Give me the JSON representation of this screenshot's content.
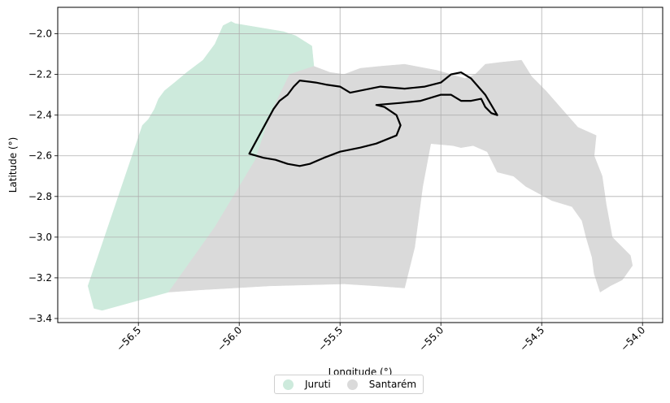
{
  "chart_data": {
    "type": "map",
    "title": "",
    "xlabel": "Longitude (°)",
    "ylabel": "Latitude (°)",
    "xlim": [
      -56.9,
      -53.9
    ],
    "ylim": [
      -3.42,
      -1.87
    ],
    "xticks": [
      -56.5,
      -56.0,
      -55.5,
      -55.0,
      -54.5,
      -54.0
    ],
    "xtick_labels": [
      "−56.5",
      "−56.0",
      "−55.5",
      "−55.0",
      "−54.5",
      "−54.0"
    ],
    "yticks": [
      -2.0,
      -2.2,
      -2.4,
      -2.6,
      -2.8,
      -3.0,
      -3.2,
      -3.4
    ],
    "ytick_labels": [
      "−2.0",
      "−2.2",
      "−2.4",
      "−2.6",
      "−2.8",
      "−3.0",
      "−3.2",
      "−3.4"
    ],
    "grid": true,
    "legend_position": "bottom-center",
    "legend": [
      {
        "name": "Juruti",
        "color": "#cdeadc"
      },
      {
        "name": "Santarém",
        "color": "#dadada"
      }
    ],
    "regions": [
      {
        "name": "Juruti",
        "color": "#cdeadc",
        "lonlat": [
          [
            -56.75,
            -3.24
          ],
          [
            -56.72,
            -3.35
          ],
          [
            -56.68,
            -3.36
          ],
          [
            -56.35,
            -3.27
          ],
          [
            -56.12,
            -2.95
          ],
          [
            -55.92,
            -2.62
          ],
          [
            -55.84,
            -2.38
          ],
          [
            -55.75,
            -2.2
          ],
          [
            -55.63,
            -2.16
          ],
          [
            -55.64,
            -2.06
          ],
          [
            -55.72,
            -2.01
          ],
          [
            -55.78,
            -1.99
          ],
          [
            -56.02,
            -1.95
          ],
          [
            -56.04,
            -1.94
          ],
          [
            -56.08,
            -1.96
          ],
          [
            -56.12,
            -2.05
          ],
          [
            -56.18,
            -2.13
          ],
          [
            -56.26,
            -2.19
          ],
          [
            -56.32,
            -2.24
          ],
          [
            -56.37,
            -2.28
          ],
          [
            -56.4,
            -2.32
          ],
          [
            -56.42,
            -2.37
          ],
          [
            -56.45,
            -2.42
          ],
          [
            -56.47,
            -2.44
          ],
          [
            -56.48,
            -2.45
          ]
        ]
      },
      {
        "name": "Santarém",
        "color": "#dadada",
        "lonlat": [
          [
            -56.35,
            -3.27
          ],
          [
            -56.12,
            -2.95
          ],
          [
            -55.92,
            -2.62
          ],
          [
            -55.84,
            -2.38
          ],
          [
            -55.75,
            -2.2
          ],
          [
            -55.63,
            -2.16
          ],
          [
            -55.55,
            -2.19
          ],
          [
            -55.48,
            -2.2
          ],
          [
            -55.4,
            -2.17
          ],
          [
            -55.3,
            -2.16
          ],
          [
            -55.18,
            -2.15
          ],
          [
            -55.02,
            -2.18
          ],
          [
            -54.88,
            -2.22
          ],
          [
            -54.83,
            -2.2
          ],
          [
            -54.78,
            -2.15
          ],
          [
            -54.7,
            -2.14
          ],
          [
            -54.6,
            -2.13
          ],
          [
            -54.55,
            -2.21
          ],
          [
            -54.48,
            -2.28
          ],
          [
            -54.4,
            -2.37
          ],
          [
            -54.32,
            -2.46
          ],
          [
            -54.23,
            -2.5
          ],
          [
            -54.24,
            -2.6
          ],
          [
            -54.2,
            -2.7
          ],
          [
            -54.18,
            -2.84
          ],
          [
            -54.15,
            -3.0
          ],
          [
            -54.06,
            -3.09
          ],
          [
            -54.05,
            -3.14
          ],
          [
            -54.1,
            -3.21
          ],
          [
            -54.16,
            -3.24
          ],
          [
            -54.21,
            -3.27
          ],
          [
            -54.24,
            -3.18
          ],
          [
            -54.25,
            -3.1
          ],
          [
            -54.28,
            -3.0
          ],
          [
            -54.3,
            -2.92
          ],
          [
            -54.35,
            -2.85
          ],
          [
            -54.45,
            -2.82
          ],
          [
            -54.58,
            -2.75
          ],
          [
            -54.64,
            -2.7
          ],
          [
            -54.72,
            -2.68
          ],
          [
            -54.77,
            -2.58
          ],
          [
            -54.84,
            -2.55
          ],
          [
            -54.9,
            -2.56
          ],
          [
            -54.94,
            -2.55
          ],
          [
            -55.05,
            -2.54
          ],
          [
            -55.09,
            -2.75
          ],
          [
            -55.13,
            -3.05
          ],
          [
            -55.18,
            -3.25
          ],
          [
            -55.32,
            -3.24
          ],
          [
            -55.48,
            -3.23
          ],
          [
            -55.85,
            -3.24
          ],
          [
            -56.2,
            -3.26
          ]
        ]
      }
    ],
    "outline": {
      "color": "#000000",
      "lonlat": [
        [
          -55.95,
          -2.59
        ],
        [
          -55.88,
          -2.61
        ],
        [
          -55.82,
          -2.62
        ],
        [
          -55.76,
          -2.64
        ],
        [
          -55.7,
          -2.65
        ],
        [
          -55.65,
          -2.64
        ],
        [
          -55.58,
          -2.61
        ],
        [
          -55.5,
          -2.58
        ],
        [
          -55.4,
          -2.56
        ],
        [
          -55.32,
          -2.54
        ],
        [
          -55.27,
          -2.52
        ],
        [
          -55.22,
          -2.5
        ],
        [
          -55.2,
          -2.45
        ],
        [
          -55.22,
          -2.4
        ],
        [
          -55.28,
          -2.36
        ],
        [
          -55.32,
          -2.35
        ],
        [
          -55.2,
          -2.34
        ],
        [
          -55.1,
          -2.33
        ],
        [
          -55.0,
          -2.3
        ],
        [
          -54.95,
          -2.3
        ],
        [
          -54.9,
          -2.33
        ],
        [
          -54.85,
          -2.33
        ],
        [
          -54.8,
          -2.32
        ],
        [
          -54.78,
          -2.36
        ],
        [
          -54.75,
          -2.39
        ],
        [
          -54.72,
          -2.4
        ],
        [
          -54.78,
          -2.3
        ],
        [
          -54.85,
          -2.22
        ],
        [
          -54.9,
          -2.19
        ],
        [
          -54.95,
          -2.2
        ],
        [
          -55.0,
          -2.24
        ],
        [
          -55.08,
          -2.26
        ],
        [
          -55.18,
          -2.27
        ],
        [
          -55.3,
          -2.26
        ],
        [
          -55.4,
          -2.28
        ],
        [
          -55.45,
          -2.29
        ],
        [
          -55.5,
          -2.26
        ],
        [
          -55.57,
          -2.25
        ],
        [
          -55.62,
          -2.24
        ],
        [
          -55.7,
          -2.23
        ],
        [
          -55.73,
          -2.26
        ],
        [
          -55.76,
          -2.3
        ],
        [
          -55.8,
          -2.33
        ],
        [
          -55.83,
          -2.37
        ],
        [
          -55.95,
          -2.59
        ]
      ]
    }
  }
}
